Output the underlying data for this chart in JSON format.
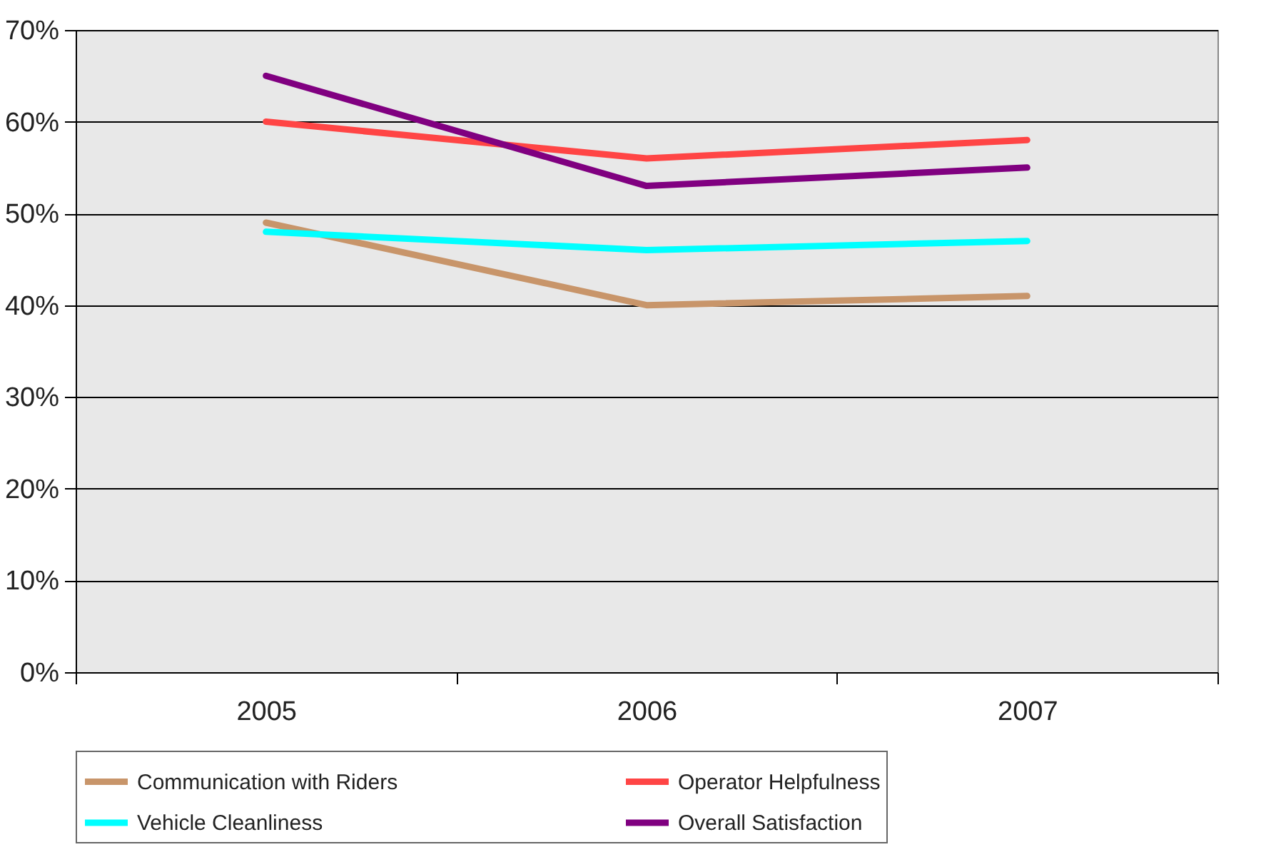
{
  "chart_data": {
    "type": "line",
    "categories": [
      "2005",
      "2006",
      "2007"
    ],
    "series": [
      {
        "name": "Communication with Riders",
        "color": "#c8956a",
        "values": [
          49,
          40,
          41
        ]
      },
      {
        "name": "Operator Helpfulness",
        "color": "#ff4545",
        "values": [
          60,
          56,
          58
        ]
      },
      {
        "name": "Vehicle Cleanliness",
        "color": "#00ffff",
        "values": [
          48,
          46,
          47
        ]
      },
      {
        "name": "Overall Satisfaction",
        "color": "#800080",
        "values": [
          65,
          53,
          55
        ]
      }
    ],
    "ylim": [
      0,
      70
    ],
    "yticks": [
      {
        "value": 0,
        "label": "0%"
      },
      {
        "value": 10,
        "label": "10%"
      },
      {
        "value": 20,
        "label": "20%"
      },
      {
        "value": 30,
        "label": "30%"
      },
      {
        "value": 40,
        "label": "40%"
      },
      {
        "value": 50,
        "label": "50%"
      },
      {
        "value": 60,
        "label": "60%"
      },
      {
        "value": 70,
        "label": "70%"
      }
    ],
    "grid": "y",
    "legend": "bottom",
    "line_style": "solid"
  }
}
